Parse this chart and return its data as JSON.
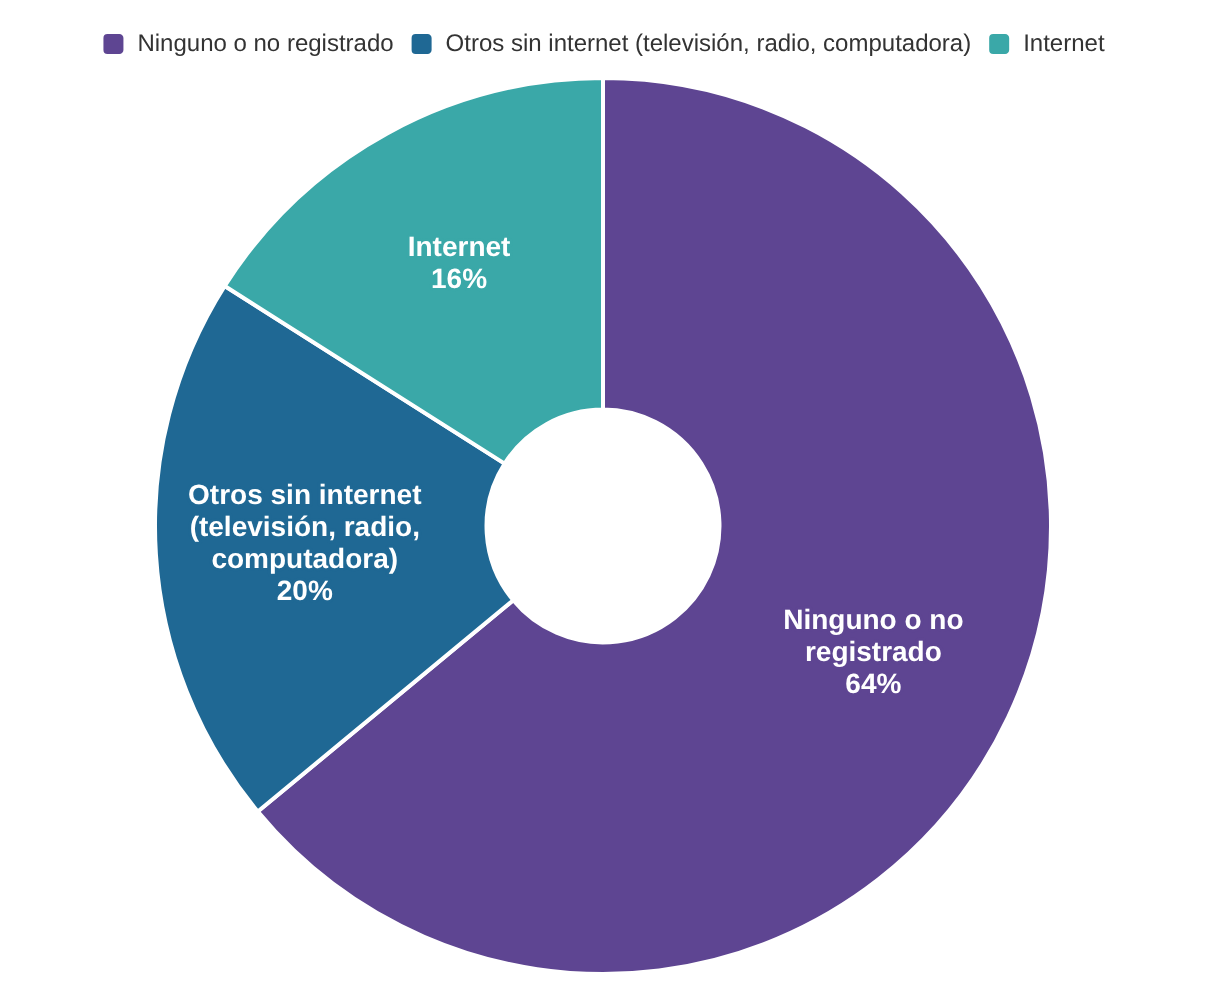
{
  "chart_data": {
    "type": "donut",
    "categories": [
      "Ninguno o no registrado",
      "Otros sin internet (televisión, radio, computadora)",
      "Internet"
    ],
    "values": [
      64,
      20,
      16
    ],
    "colors": [
      "#5e4592",
      "#1f6894",
      "#3aa8a8"
    ],
    "value_labels": [
      "64%",
      "20%",
      "16%"
    ],
    "legend": "top"
  }
}
